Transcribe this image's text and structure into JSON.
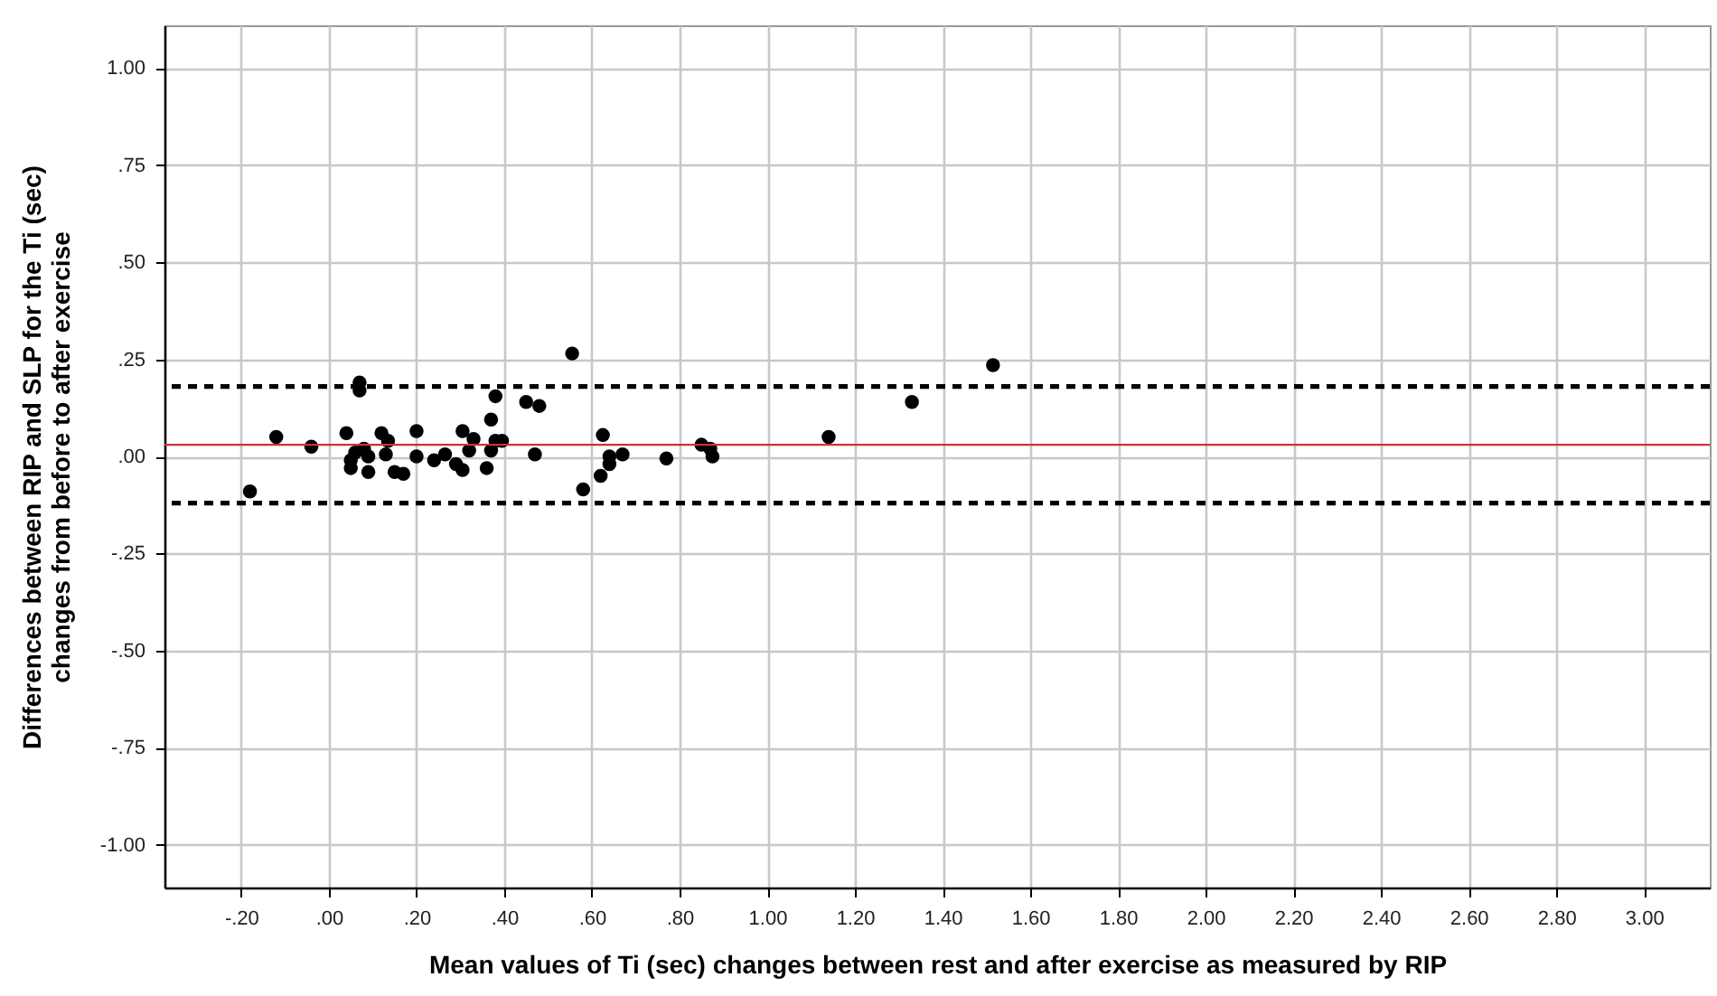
{
  "chart_data": {
    "type": "scatter",
    "xlabel": "Mean values of Ti (sec) changes between rest and after exercise as measured by RIP",
    "ylabel": "Differences between RIP and SLP for the Ti (sec)\nchanges from before to after exercise",
    "xlim": [
      -0.375,
      3.15
    ],
    "ylim": [
      -1.11,
      1.11
    ],
    "xticks": [
      {
        "value": -0.2,
        "label": "-.20"
      },
      {
        "value": 0,
        "label": ".00"
      },
      {
        "value": 0.2,
        "label": ".20"
      },
      {
        "value": 0.4,
        "label": ".40"
      },
      {
        "value": 0.6,
        "label": ".60"
      },
      {
        "value": 0.8,
        "label": ".80"
      },
      {
        "value": 1.0,
        "label": "1.00"
      },
      {
        "value": 1.2,
        "label": "1.20"
      },
      {
        "value": 1.4,
        "label": "1.40"
      },
      {
        "value": 1.6,
        "label": "1.60"
      },
      {
        "value": 1.8,
        "label": "1.80"
      },
      {
        "value": 2.0,
        "label": "2.00"
      },
      {
        "value": 2.2,
        "label": "2.20"
      },
      {
        "value": 2.4,
        "label": "2.40"
      },
      {
        "value": 2.6,
        "label": "2.60"
      },
      {
        "value": 2.8,
        "label": "2.80"
      },
      {
        "value": 3.0,
        "label": "3.00"
      }
    ],
    "yticks": [
      {
        "value": -1.0,
        "label": "-1.00"
      },
      {
        "value": -0.75,
        "label": "-.75"
      },
      {
        "value": -0.5,
        "label": "-.50"
      },
      {
        "value": -0.25,
        "label": "-.25"
      },
      {
        "value": 0,
        "label": ".00"
      },
      {
        "value": 0.25,
        "label": ".25"
      },
      {
        "value": 0.5,
        "label": ".50"
      },
      {
        "value": 0.75,
        "label": ".75"
      },
      {
        "value": 1.0,
        "label": "1.00"
      }
    ],
    "grid": true,
    "marker": "circle",
    "series": [
      {
        "color": "#000000",
        "x": [
          -0.18,
          -0.12,
          -0.04,
          0.04,
          0.07,
          0.07,
          0.05,
          0.05,
          0.06,
          0.08,
          0.09,
          0.09,
          0.12,
          0.135,
          0.13,
          0.15,
          0.17,
          0.2,
          0.2,
          0.24,
          0.265,
          0.29,
          0.305,
          0.305,
          0.32,
          0.33,
          0.36,
          0.37,
          0.38,
          0.37,
          0.38,
          0.395,
          0.45,
          0.48,
          0.47,
          0.555,
          0.58,
          0.62,
          0.625,
          0.64,
          0.64,
          0.67,
          0.77,
          0.85,
          0.87,
          0.875,
          1.14,
          1.33,
          1.515
        ],
        "values": [
          -0.09,
          0.05,
          0.025,
          0.06,
          0.19,
          0.17,
          -0.01,
          -0.03,
          0.01,
          0.02,
          -0.04,
          0.0,
          0.06,
          0.04,
          0.005,
          -0.04,
          -0.045,
          0.065,
          0.0,
          -0.01,
          0.005,
          -0.02,
          -0.035,
          0.065,
          0.015,
          0.045,
          -0.03,
          0.095,
          0.155,
          0.015,
          0.04,
          0.04,
          0.14,
          0.13,
          0.005,
          0.265,
          -0.085,
          -0.05,
          0.055,
          0.0,
          -0.02,
          0.005,
          -0.005,
          0.03,
          0.02,
          0.0,
          0.05,
          0.14,
          0.235
        ]
      }
    ],
    "ref_lines": [
      {
        "axis": "y",
        "value": 0.18,
        "color": "#000000",
        "line_style": "dashed"
      },
      {
        "axis": "y",
        "value": 0.03,
        "color": "#cc3333",
        "line_style": "solid"
      },
      {
        "axis": "y",
        "value": -0.12,
        "color": "#000000",
        "line_style": "dashed"
      }
    ]
  }
}
